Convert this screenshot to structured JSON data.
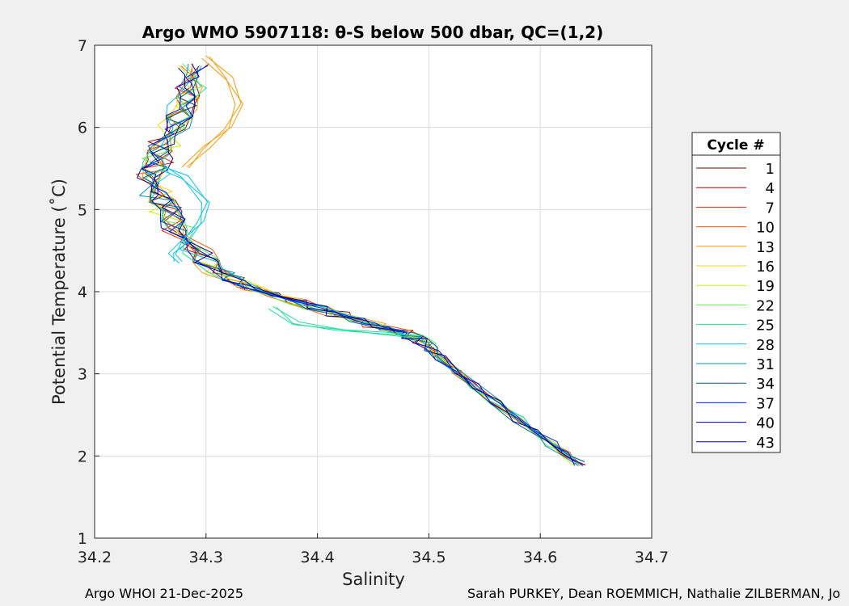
{
  "chart_data": {
    "type": "line",
    "title": "Argo WMO 5907118: θ-S below 500 dbar,  QC=(1,2)",
    "xlabel": "Salinity",
    "ylabel": "Potential Temperature (˚C)",
    "xlim": [
      34.2,
      34.7
    ],
    "ylim": [
      1,
      7
    ],
    "xticks": [
      "34.2",
      "34.3",
      "34.4",
      "34.5",
      "34.6",
      "34.7"
    ],
    "yticks": [
      "1",
      "2",
      "3",
      "4",
      "5",
      "6",
      "7"
    ],
    "grid": true,
    "legend_title": "Cycle #",
    "legend_position": "right",
    "legend": [
      {
        "label": "1",
        "color": "#800000"
      },
      {
        "label": "4",
        "color": "#c00000"
      },
      {
        "label": "7",
        "color": "#ff1a00"
      },
      {
        "label": "10",
        "color": "#ff5a00"
      },
      {
        "label": "13",
        "color": "#ff9a00"
      },
      {
        "label": "16",
        "color": "#ffd800"
      },
      {
        "label": "19",
        "color": "#c8f000"
      },
      {
        "label": "22",
        "color": "#60ee50"
      },
      {
        "label": "25",
        "color": "#20e0a0"
      },
      {
        "label": "28",
        "color": "#00c8f0"
      },
      {
        "label": "31",
        "color": "#0090c0"
      },
      {
        "label": "34",
        "color": "#006080"
      },
      {
        "label": "37",
        "color": "#0020ff"
      },
      {
        "label": "40",
        "color": "#0000c8"
      },
      {
        "label": "43",
        "color": "#000090"
      }
    ],
    "profile": {
      "S": [
        34.288,
        34.287,
        34.28,
        34.272,
        34.262,
        34.255,
        34.252,
        34.256,
        34.265,
        34.275,
        34.29,
        34.31,
        34.34,
        34.38,
        34.42,
        34.45,
        34.475,
        34.495,
        34.51,
        34.54,
        34.58,
        34.61,
        34.635
      ],
      "T": [
        6.75,
        6.5,
        6.25,
        6.0,
        5.8,
        5.6,
        5.4,
        5.2,
        5.0,
        4.75,
        4.5,
        4.25,
        4.05,
        3.88,
        3.72,
        3.6,
        3.5,
        3.4,
        3.2,
        2.85,
        2.45,
        2.15,
        1.9
      ]
    },
    "anomalies": [
      {
        "color": "#ff9a00",
        "S": [
          34.3,
          34.32,
          34.33,
          34.32,
          34.3,
          34.282
        ],
        "T": [
          6.85,
          6.6,
          6.3,
          6.0,
          5.75,
          5.5
        ]
      },
      {
        "color": "#00c8f0",
        "S": [
          34.262,
          34.28,
          34.3,
          34.295,
          34.28,
          34.27,
          34.275
        ],
        "T": [
          5.5,
          5.4,
          5.1,
          4.85,
          4.6,
          4.45,
          4.35
        ]
      },
      {
        "color": "#20e0a0",
        "S": [
          34.36,
          34.38,
          34.42,
          34.46,
          34.49
        ],
        "T": [
          3.8,
          3.62,
          3.55,
          3.5,
          3.45
        ]
      }
    ]
  },
  "footer": {
    "left": "Argo WHOI 21-Dec-2025",
    "right": "Sarah PURKEY, Dean ROEMMICH, Nathalie ZILBERMAN, Jo"
  }
}
